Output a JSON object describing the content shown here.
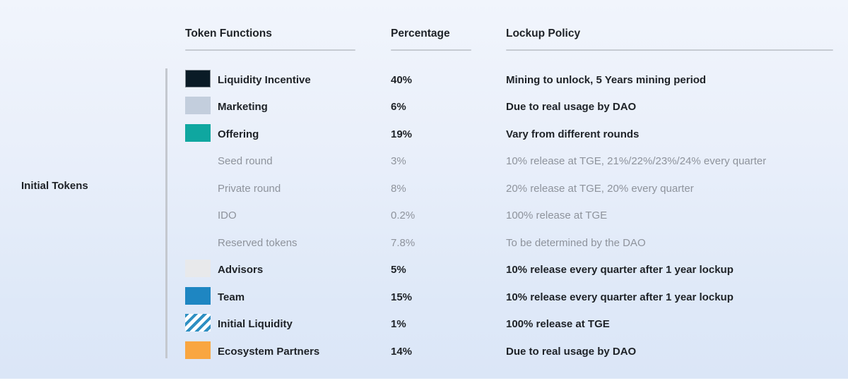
{
  "section": {
    "label": "Initial Tokens"
  },
  "table": {
    "headers": [
      {
        "label": "Token Functions"
      },
      {
        "label": "Percentage"
      },
      {
        "label": "Lockup Policy"
      }
    ],
    "rows": [
      {
        "function": "Liquidity Incentive",
        "percentage": "40%",
        "lockup": "Mining to unlock, 5 Years mining period",
        "emphasis": "main",
        "swatch": {
          "type": "solid",
          "color": "#0a1b26",
          "border": "#7f878f"
        }
      },
      {
        "function": "Marketing",
        "percentage": "6%",
        "lockup": "Due to real usage by DAO",
        "emphasis": "main",
        "swatch": {
          "type": "solid",
          "color": "#c3cedd"
        }
      },
      {
        "function": "Offering",
        "percentage": "19%",
        "lockup": "Vary from different rounds",
        "emphasis": "main",
        "swatch": {
          "type": "solid",
          "color": "#0fa7a0"
        }
      },
      {
        "function": "Seed round",
        "percentage": "3%",
        "lockup": "10% release at TGE, 21%/22%/23%/24% every quarter",
        "emphasis": "sub",
        "swatch": {
          "type": "none"
        }
      },
      {
        "function": "Private round",
        "percentage": "8%",
        "lockup": "20% release at TGE, 20% every quarter",
        "emphasis": "sub",
        "swatch": {
          "type": "none"
        }
      },
      {
        "function": "IDO",
        "percentage": "0.2%",
        "lockup": "100% release at TGE",
        "emphasis": "sub",
        "swatch": {
          "type": "none"
        }
      },
      {
        "function": "Reserved tokens",
        "percentage": "7.8%",
        "lockup": "To be determined by the DAO",
        "emphasis": "sub",
        "swatch": {
          "type": "none"
        }
      },
      {
        "function": "Advisors",
        "percentage": "5%",
        "lockup": "10% release every quarter after 1 year lockup",
        "emphasis": "main",
        "swatch": {
          "type": "solid",
          "color": "#e8e9eb"
        }
      },
      {
        "function": "Team",
        "percentage": "15%",
        "lockup": "10% release every quarter after 1 year lockup",
        "emphasis": "main",
        "swatch": {
          "type": "solid",
          "color": "#1e86c2"
        }
      },
      {
        "function": "Initial Liquidity",
        "percentage": "1%",
        "lockup": "100% release at TGE",
        "emphasis": "main",
        "swatch": {
          "type": "striped",
          "color": "#2e8fc2",
          "background": "#ffffff"
        }
      },
      {
        "function": "Ecosystem Partners",
        "percentage": "14%",
        "lockup": "Due to real usage by DAO",
        "emphasis": "main",
        "swatch": {
          "type": "solid",
          "color": "#f9a640"
        }
      }
    ]
  },
  "colors": {
    "panel_top": "#f1f5fc",
    "panel_bottom": "#dbe6f7",
    "divider": "#c4c8cf",
    "header_underline": "#c6cbd2",
    "text_dark": "#1e2227",
    "text_gray": "#8e939c"
  }
}
